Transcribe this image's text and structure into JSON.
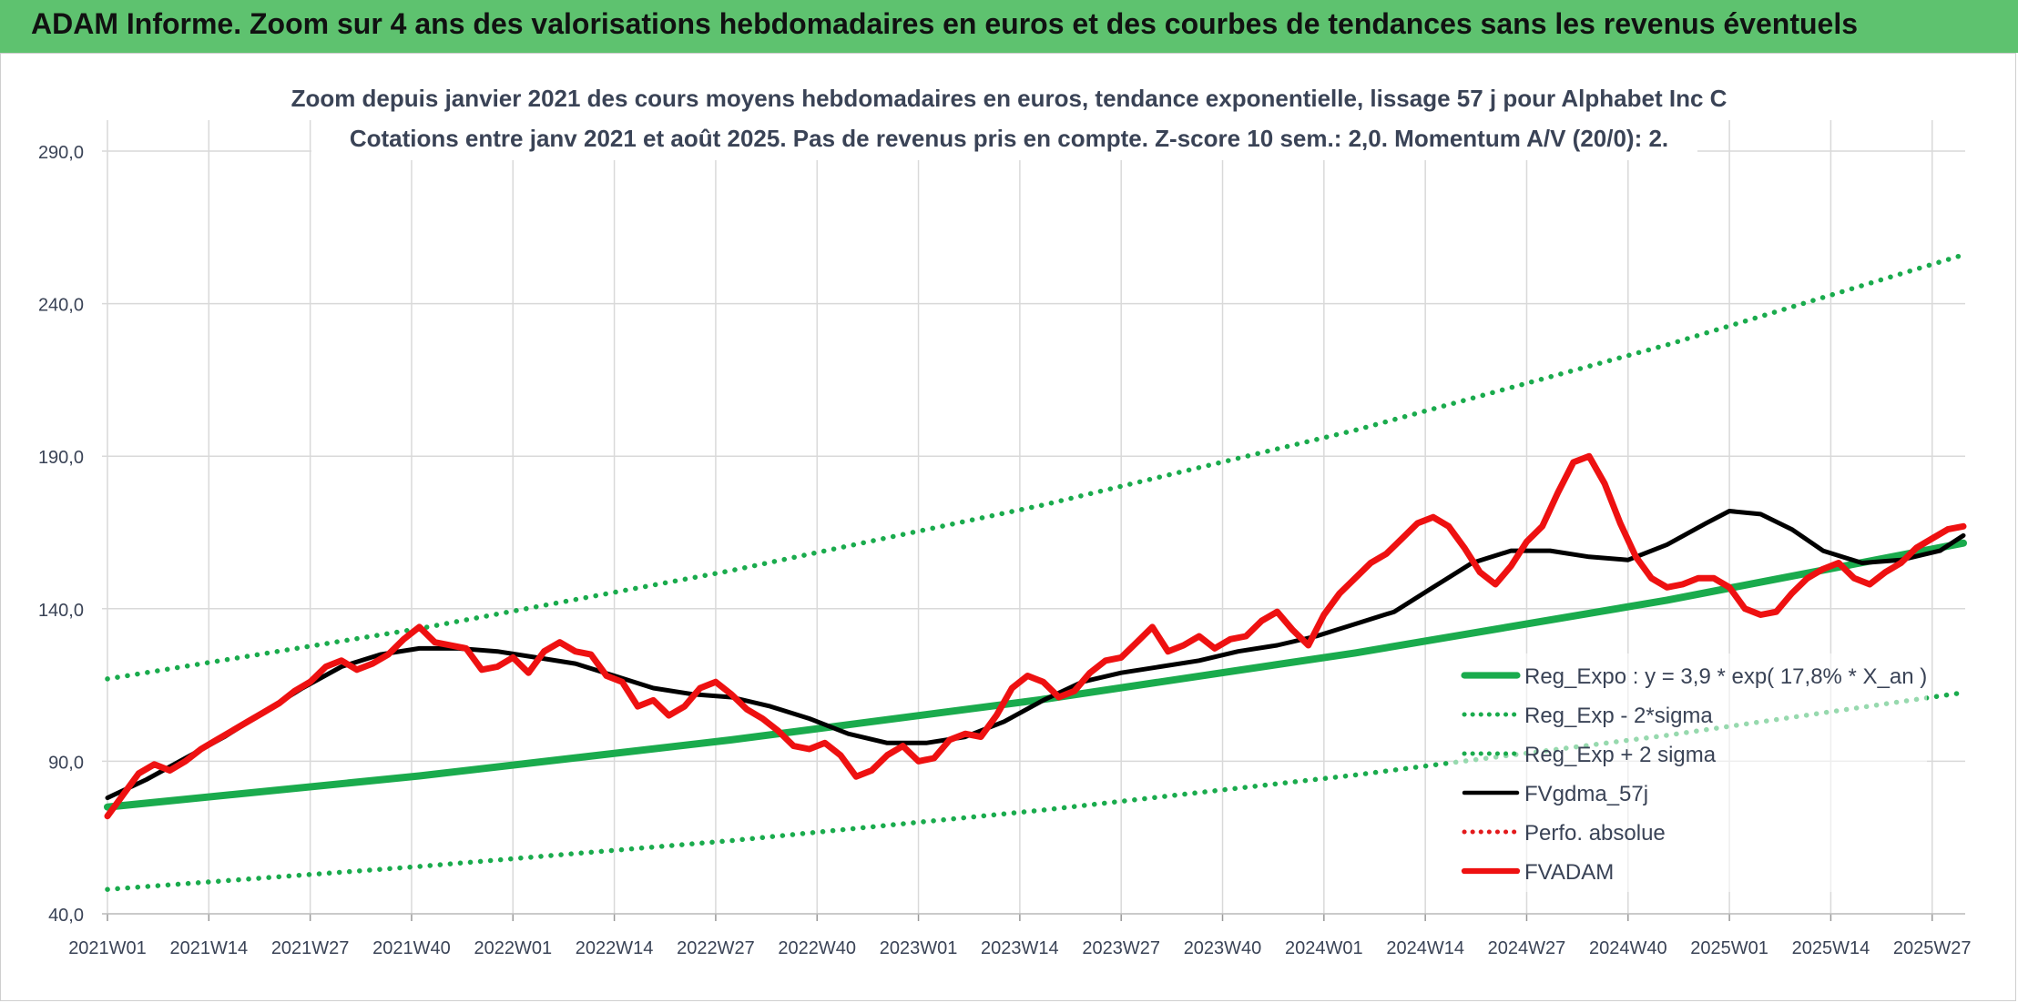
{
  "header": {
    "banner_title": "ADAM Informe. Zoom sur 4 ans des valorisations hebdomadaires en euros et des courbes de tendances sans les revenus éventuels"
  },
  "chart_data": {
    "type": "line",
    "title": "Zoom depuis janvier 2021 des cours moyens hebdomadaires en euros, tendance exponentielle, lissage 57 j pour Alphabet Inc C",
    "subtitle": "Cotations entre janv 2021 et août 2025. Pas de revenus pris en compte. Z-score 10 sem.: 2,0. Momentum A/V (20/0): 2.",
    "xlabel": "",
    "ylabel": "",
    "ylim": [
      40,
      290
    ],
    "yticks": [
      "40,0",
      "90,0",
      "140,0",
      "190,0",
      "240,0",
      "290,0"
    ],
    "x_tick_labels": [
      "2021W01",
      "2021W14",
      "2021W27",
      "2021W40",
      "2022W01",
      "2022W14",
      "2022W27",
      "2022W40",
      "2023W01",
      "2023W14",
      "2023W27",
      "2023W40",
      "2024W01",
      "2024W14",
      "2024W27",
      "2024W40",
      "2025W01",
      "2025W14",
      "2025W27"
    ],
    "x_tick_index": [
      0,
      13,
      26,
      39,
      52,
      65,
      78,
      91,
      104,
      117,
      130,
      143,
      156,
      169,
      182,
      195,
      208,
      221,
      234
    ],
    "n_weeks": 239,
    "grid": true,
    "legend_position": "right",
    "series": [
      {
        "name": "Reg_Expo : y = 3,9 * exp( 17,8% *  X_an )",
        "color": "#1aab4d",
        "style": "solid",
        "x": [
          0,
          40,
          80,
          120,
          160,
          200,
          238
        ],
        "values": [
          75.0,
          85.2,
          97.0,
          110.3,
          125.5,
          142.8,
          161.5
        ]
      },
      {
        "name": "Reg_Exp - 2*sigma",
        "color": "#1aab4d",
        "style": "dotted",
        "x": [
          0,
          40,
          80,
          120,
          160,
          200,
          238
        ],
        "values": [
          48.0,
          55.5,
          64.0,
          74.0,
          85.5,
          98.5,
          112.5
        ]
      },
      {
        "name": "Reg_Exp + 2 sigma",
        "color": "#1aab4d",
        "style": "dotted",
        "x": [
          0,
          40,
          80,
          120,
          160,
          200,
          238
        ],
        "values": [
          117.0,
          133.5,
          152.5,
          174.0,
          198.5,
          226.5,
          256.0
        ]
      },
      {
        "name": "FVgdma_57j",
        "color": "#000000",
        "style": "solid",
        "x": [
          0,
          5,
          10,
          15,
          20,
          25,
          30,
          35,
          40,
          45,
          50,
          55,
          60,
          65,
          70,
          75,
          80,
          85,
          90,
          95,
          100,
          105,
          110,
          115,
          120,
          125,
          130,
          135,
          140,
          145,
          150,
          155,
          160,
          165,
          170,
          175,
          180,
          185,
          190,
          195,
          200,
          205,
          208,
          212,
          216,
          220,
          225,
          230,
          235,
          238
        ],
        "values": [
          78,
          84,
          91,
          98,
          106,
          114,
          121,
          125,
          127,
          127,
          126,
          124,
          122,
          118,
          114,
          112,
          111,
          108,
          104,
          99,
          96,
          96,
          98,
          103,
          110,
          116,
          119,
          121,
          123,
          126,
          128,
          131,
          135,
          139,
          147,
          155,
          159,
          159,
          157,
          156,
          161,
          168,
          172,
          171,
          166,
          159,
          155,
          156,
          159,
          164
        ]
      },
      {
        "name": "Perfo. absolue",
        "color": "#e31a1c",
        "style": "dotted",
        "x": [],
        "values": []
      },
      {
        "name": "FVADAM",
        "color": "#ee1111",
        "style": "solid",
        "x": [
          0,
          2,
          4,
          6,
          8,
          10,
          12,
          14,
          16,
          18,
          20,
          22,
          24,
          26,
          28,
          30,
          32,
          34,
          36,
          38,
          40,
          42,
          44,
          46,
          48,
          50,
          52,
          54,
          56,
          58,
          60,
          62,
          64,
          66,
          68,
          70,
          72,
          74,
          76,
          78,
          80,
          82,
          84,
          86,
          88,
          90,
          92,
          94,
          96,
          98,
          100,
          102,
          104,
          106,
          108,
          110,
          112,
          114,
          116,
          118,
          120,
          122,
          124,
          126,
          128,
          130,
          132,
          134,
          136,
          138,
          140,
          142,
          144,
          146,
          148,
          150,
          152,
          154,
          156,
          158,
          160,
          162,
          164,
          166,
          168,
          170,
          172,
          174,
          176,
          178,
          180,
          182,
          184,
          186,
          188,
          190,
          192,
          194,
          196,
          198,
          200,
          202,
          204,
          206,
          208,
          210,
          212,
          214,
          216,
          218,
          220,
          222,
          224,
          226,
          228,
          230,
          232,
          234,
          236,
          238
        ],
        "values": [
          72,
          79,
          86,
          89,
          87,
          90,
          94,
          97,
          100,
          103,
          106,
          109,
          113,
          116,
          121,
          123,
          120,
          122,
          125,
          130,
          134,
          129,
          128,
          127,
          120,
          121,
          124,
          119,
          126,
          129,
          126,
          125,
          118,
          116,
          108,
          110,
          105,
          108,
          114,
          116,
          112,
          107,
          104,
          100,
          95,
          94,
          96,
          92,
          85,
          87,
          92,
          95,
          90,
          91,
          97,
          99,
          98,
          105,
          114,
          118,
          116,
          111,
          113,
          119,
          123,
          124,
          129,
          134,
          126,
          128,
          131,
          127,
          130,
          131,
          136,
          139,
          133,
          128,
          138,
          145,
          150,
          155,
          158,
          163,
          168,
          170,
          167,
          160,
          152,
          148,
          154,
          162,
          167,
          178,
          188,
          190,
          181,
          168,
          157,
          150,
          147,
          148,
          150,
          150,
          147,
          140,
          138,
          139,
          145,
          150,
          153,
          155,
          150,
          148,
          152,
          155,
          160,
          163,
          166,
          167
        ]
      }
    ]
  }
}
